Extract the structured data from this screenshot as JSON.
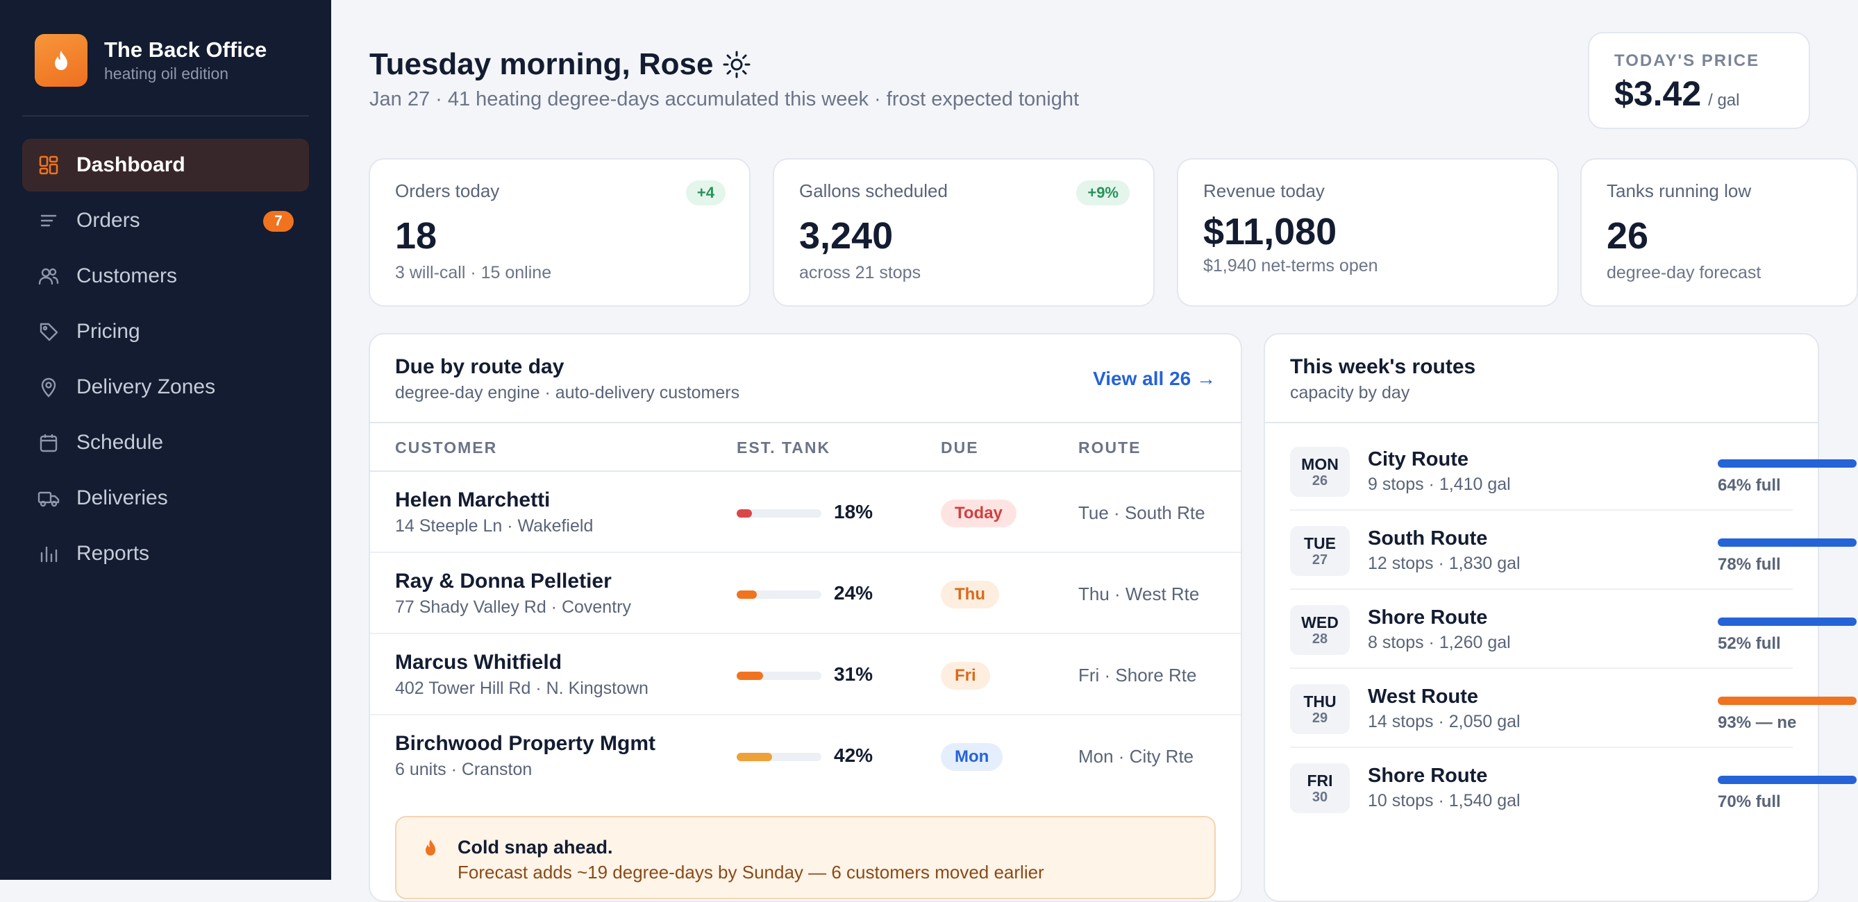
{
  "brand": {
    "title": "The Back Office",
    "subtitle": "heating oil edition",
    "icon": "flame-icon",
    "color": "#f08a2c"
  },
  "sidebar": {
    "items": [
      {
        "label": "Dashboard",
        "icon": "grid-icon",
        "active": true
      },
      {
        "label": "Orders",
        "icon": "list-icon",
        "badge": "7"
      },
      {
        "label": "Customers",
        "icon": "users-icon"
      },
      {
        "label": "Pricing",
        "icon": "tag-icon"
      },
      {
        "label": "Delivery Zones",
        "icon": "map-pin-icon"
      },
      {
        "label": "Schedule",
        "icon": "calendar-icon"
      },
      {
        "label": "Deliveries",
        "icon": "truck-icon"
      },
      {
        "label": "Reports",
        "icon": "bar-chart-icon"
      }
    ]
  },
  "header": {
    "greeting": "Tuesday morning, Rose",
    "greeting_icon": "sun-icon",
    "subtitle": "Jan 27 · 41 heating degree-days accumulated this week · frost expected tonight"
  },
  "price": {
    "label": "TODAY'S PRICE",
    "value": "$3.42",
    "unit": "/ gal"
  },
  "stats": [
    {
      "label": "Orders today",
      "value": "18",
      "sub": "3 will-call · 15 online",
      "chip": "+4"
    },
    {
      "label": "Gallons scheduled",
      "value": "3,240",
      "sub": "across 21 stops",
      "chip": "+9%"
    },
    {
      "label": "Revenue today",
      "value": "$11,080",
      "sub": "$1,940 net-terms open"
    },
    {
      "label": "Tanks running low",
      "value": "26",
      "sub": "degree-day forecast"
    }
  ],
  "due": {
    "title": "Due by route day",
    "subtitle": "degree-day engine · auto-delivery customers",
    "view_all": "View all 26 →",
    "columns": [
      "CUSTOMER",
      "EST. TANK",
      "DUE",
      "ROUTE"
    ],
    "rows": [
      {
        "name": "Helen Marchetti",
        "address": "14 Steeple Ln · Wakefield",
        "tank": 18,
        "tank_label": "18%",
        "tank_color": "#d94848",
        "due": "Today",
        "due_bg": "#fde4e2",
        "due_fg": "#d23f3f",
        "route": "Tue · South Rte"
      },
      {
        "name": "Ray & Donna Pelletier",
        "address": "77 Shady Valley Rd · Coventry",
        "tank": 24,
        "tank_label": "24%",
        "tank_color": "#f0731f",
        "due": "Thu",
        "due_bg": "#fdeee0",
        "due_fg": "#d96a1c",
        "route": "Thu · West Rte"
      },
      {
        "name": "Marcus Whitfield",
        "address": "402 Tower Hill Rd · N. Kingstown",
        "tank": 31,
        "tank_label": "31%",
        "tank_color": "#f0731f",
        "due": "Fri",
        "due_bg": "#fdeee0",
        "due_fg": "#d96a1c",
        "route": "Fri · Shore Rte"
      },
      {
        "name": "Birchwood Property Mgmt",
        "address": "6 units · Cranston",
        "tank": 42,
        "tank_label": "42%",
        "tank_color": "#eda138",
        "due": "Mon",
        "due_bg": "#e5eefc",
        "due_fg": "#2563d8",
        "route": "Mon · City Rte"
      }
    ],
    "alert": {
      "icon": "flame-icon",
      "title": "Cold snap ahead.",
      "body": "Forecast adds ~19 degree-days by Sunday — 6 customers moved earlier"
    }
  },
  "routes": {
    "title": "This week's routes",
    "subtitle": "capacity by day",
    "items": [
      {
        "day": "MON",
        "date": "26",
        "name": "City Route",
        "meta": "9 stops · 1,410 gal",
        "capacity": 64,
        "capacity_label": "64% full",
        "color": "#2563d8"
      },
      {
        "day": "TUE",
        "date": "27",
        "name": "South Route",
        "meta": "12 stops · 1,830 gal",
        "capacity": 78,
        "capacity_label": "78% full",
        "color": "#2563d8"
      },
      {
        "day": "WED",
        "date": "28",
        "name": "Shore Route",
        "meta": "8 stops · 1,260 gal",
        "capacity": 52,
        "capacity_label": "52% full",
        "color": "#2563d8"
      },
      {
        "day": "THU",
        "date": "29",
        "name": "West Route",
        "meta": "14 stops · 2,050 gal",
        "capacity": 93,
        "capacity_label": "93% — ne",
        "color": "#f0731f"
      },
      {
        "day": "FRI",
        "date": "30",
        "name": "Shore Route",
        "meta": "10 stops · 1,540 gal",
        "capacity": 70,
        "capacity_label": "70% full",
        "color": "#2563d8"
      }
    ]
  }
}
